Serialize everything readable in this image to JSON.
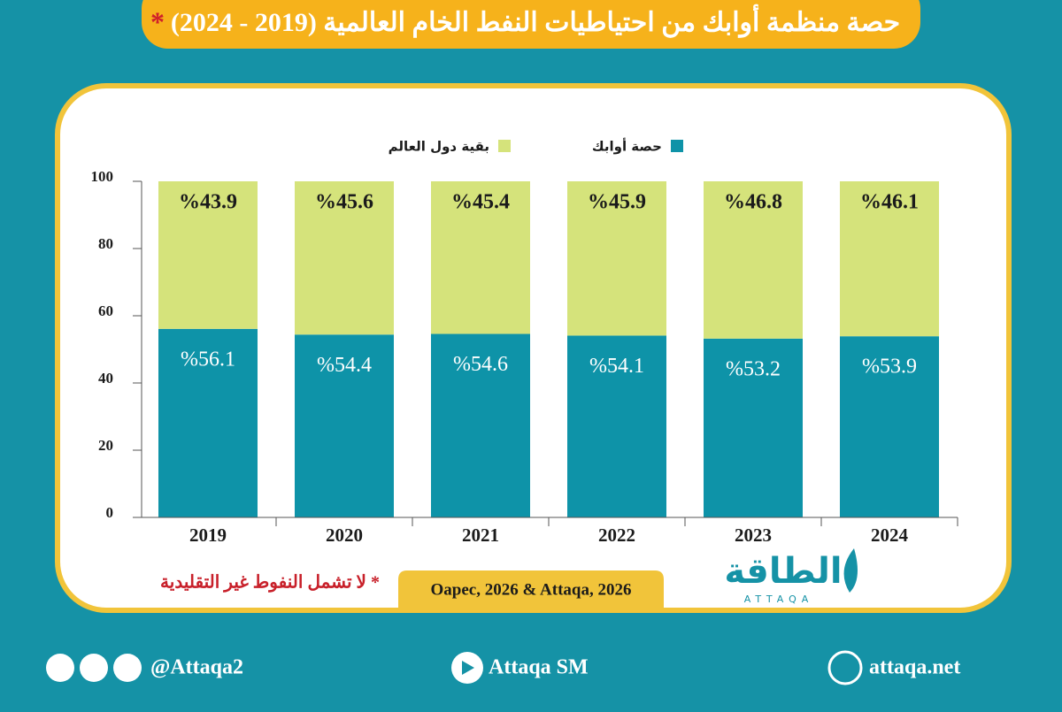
{
  "chart_data": {
    "type": "bar",
    "stacked": true,
    "title": "حصة منظمة أوابك من احتياطيات النفط الخام العالمية (2019 - 2024)",
    "title_mark": "*",
    "categories": [
      "2019",
      "2020",
      "2021",
      "2022",
      "2023",
      "2024"
    ],
    "series": [
      {
        "name": "حصة أوابك",
        "color": "#0e93a8",
        "values": [
          56.1,
          54.4,
          54.6,
          54.1,
          53.2,
          53.9
        ],
        "value_labels": [
          "%56.1",
          "%54.4",
          "%54.6",
          "%54.1",
          "%53.2",
          "%53.9"
        ]
      },
      {
        "name": "بقية دول العالم",
        "color": "#d5e37b",
        "values": [
          43.9,
          45.6,
          45.4,
          45.9,
          46.8,
          46.1
        ],
        "value_labels": [
          "%43.9",
          "%45.6",
          "%45.4",
          "%45.9",
          "%46.8",
          "%46.1"
        ]
      }
    ],
    "ylim": [
      0,
      100
    ],
    "yticks": [
      0,
      20,
      40,
      60,
      80,
      100
    ],
    "footnote": "* لا تشمل النفوط غير التقليدية",
    "source": "Oapec, 2026 & Attaqa, 2026"
  },
  "logo": {
    "name": "الطاقة",
    "latin": "ATTAQA"
  },
  "footer": {
    "social": "@Attaqa2",
    "youtube": "Attaqa SM",
    "website": "attaqa.net"
  }
}
